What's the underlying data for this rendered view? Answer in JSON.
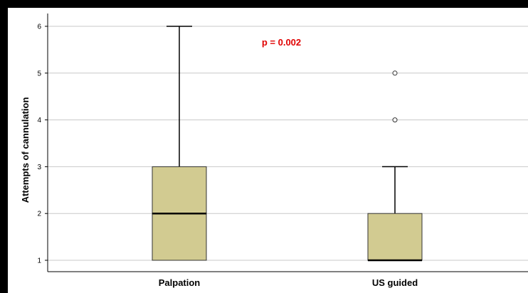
{
  "chart_data": {
    "type": "box",
    "title": "",
    "xlabel": "",
    "ylabel": "Attempts of cannulation",
    "ylim": [
      0.75,
      6.3
    ],
    "yticks": [
      1,
      2,
      3,
      4,
      5,
      6
    ],
    "grid": true,
    "categories": [
      "Palpation",
      "US guided"
    ],
    "boxes": [
      {
        "category": "Palpation",
        "min": 1,
        "q1": 1,
        "median": 2,
        "q3": 3,
        "max": 6,
        "outliers": []
      },
      {
        "category": "US guided",
        "min": 1,
        "q1": 1,
        "median": 1,
        "q3": 2,
        "max": 3,
        "outliers": [
          4,
          5
        ]
      }
    ],
    "annotation": {
      "text": "p = 0.002",
      "color": "#e00000",
      "x_category_position": 1.5,
      "y": 5.65
    },
    "colors": {
      "box_fill": "#d2cb91",
      "box_stroke": "#333333",
      "grid": "#c8c8c8",
      "frame": "#000000"
    }
  }
}
